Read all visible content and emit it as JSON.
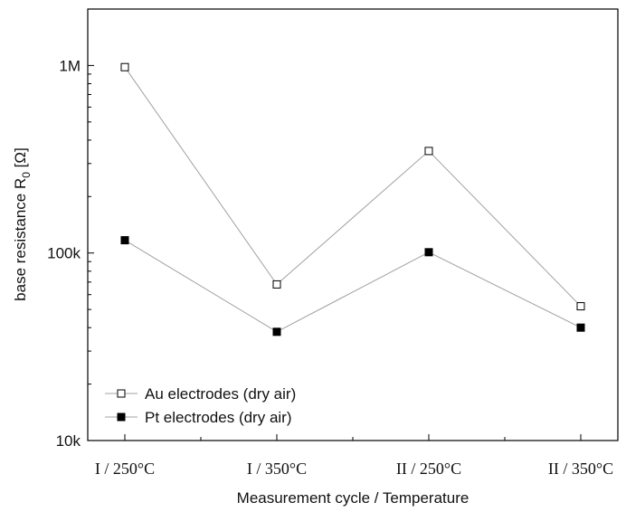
{
  "chart_data": {
    "type": "line",
    "xlabel": "Measurement cycle / Temperature",
    "ylabel_main": "base resistance R",
    "ylabel_sub": "0",
    "ylabel_unit": " [Ω]",
    "yscale": "log",
    "ylim": [
      10000,
      2000000
    ],
    "ytick_values": [
      10000,
      100000,
      1000000
    ],
    "ytick_labels": [
      "10k",
      "100k",
      "1M"
    ],
    "categories": [
      "I / 250°C",
      "I / 350°C",
      "II / 250°C",
      "II / 350°C"
    ],
    "series": [
      {
        "name": "Au electrodes (dry air)",
        "marker": "open-square",
        "values": [
          980000,
          68000,
          350000,
          52000
        ]
      },
      {
        "name": "Pt electrodes (dry air)",
        "marker": "filled-square",
        "values": [
          117000,
          38000,
          101000,
          40000
        ]
      }
    ],
    "legend_position": "bottom-left",
    "grid": false,
    "line_color": "#a0a0a0",
    "marker_color": "#000000"
  }
}
